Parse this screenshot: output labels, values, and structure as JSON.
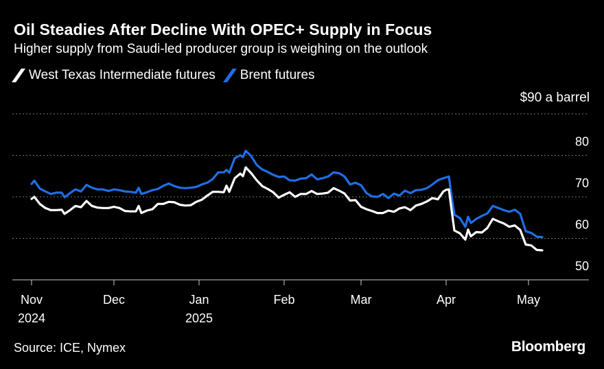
{
  "header": {
    "title": "Oil Steadies After Decline With OPEC+ Supply in Focus",
    "subtitle": "Higher supply from Saudi-led producer group is weighing on the outlook"
  },
  "footer": {
    "source": "Source: ICE, Nymex",
    "brand": "Bloomberg"
  },
  "colors": {
    "background": "#000000",
    "wti": "#ffffff",
    "brent": "#1f6fe6",
    "grid": "#777777"
  },
  "chart_data": {
    "type": "line",
    "title": "Oil Steadies After Decline With OPEC+ Supply in Focus",
    "subtitle": "Higher supply from Saudi-led producer group is weighing on the outlook",
    "unit_label": "$90 a barrel",
    "ylim": [
      50,
      90
    ],
    "yticks": [
      {
        "value": 90,
        "label": ""
      },
      {
        "value": 80,
        "label": "80"
      },
      {
        "value": 70,
        "label": "70"
      },
      {
        "value": 60,
        "label": "60"
      },
      {
        "value": 50,
        "label": "50"
      }
    ],
    "xlim": [
      "2024-10-31",
      "2025-05-22"
    ],
    "xticks": [
      {
        "date": "2024-11-01",
        "label": "Nov",
        "label2": "2024"
      },
      {
        "date": "2024-12-01",
        "label": "Dec",
        "label2": ""
      },
      {
        "date": "2025-01-01",
        "label": "Jan",
        "label2": "2025"
      },
      {
        "date": "2025-02-01",
        "label": "Feb",
        "label2": ""
      },
      {
        "date": "2025-03-01",
        "label": "Mar",
        "label2": ""
      },
      {
        "date": "2025-04-01",
        "label": "Apr",
        "label2": ""
      },
      {
        "date": "2025-05-01",
        "label": "May",
        "label2": ""
      }
    ],
    "legend_position": "top-left",
    "grid": true,
    "series": [
      {
        "name": "West Texas Intermediate futures",
        "color": "#ffffff",
        "points": [
          [
            "2024-11-01",
            69.5
          ],
          [
            "2024-11-02",
            70.0
          ],
          [
            "2024-11-04",
            68.3
          ],
          [
            "2024-11-06",
            67.3
          ],
          [
            "2024-11-08",
            66.8
          ],
          [
            "2024-11-10",
            66.8
          ],
          [
            "2024-11-12",
            66.9
          ],
          [
            "2024-11-13",
            65.9
          ],
          [
            "2024-11-15",
            66.8
          ],
          [
            "2024-11-17",
            67.8
          ],
          [
            "2024-11-19",
            67.5
          ],
          [
            "2024-11-21",
            69.0
          ],
          [
            "2024-11-23",
            67.8
          ],
          [
            "2024-11-25",
            67.4
          ],
          [
            "2024-11-27",
            67.3
          ],
          [
            "2024-11-29",
            67.3
          ],
          [
            "2024-12-01",
            67.6
          ],
          [
            "2024-12-03",
            67.3
          ],
          [
            "2024-12-05",
            66.6
          ],
          [
            "2024-12-07",
            66.5
          ],
          [
            "2024-12-09",
            66.5
          ],
          [
            "2024-12-10",
            67.8
          ],
          [
            "2024-12-11",
            66.1
          ],
          [
            "2024-12-13",
            66.7
          ],
          [
            "2024-12-15",
            67.0
          ],
          [
            "2024-12-17",
            68.3
          ],
          [
            "2024-12-19",
            68.3
          ],
          [
            "2024-12-21",
            68.8
          ],
          [
            "2024-12-23",
            68.7
          ],
          [
            "2024-12-25",
            68.1
          ],
          [
            "2024-12-27",
            67.9
          ],
          [
            "2024-12-29",
            68.0
          ],
          [
            "2024-12-31",
            68.8
          ],
          [
            "2025-01-02",
            69.3
          ],
          [
            "2025-01-04",
            70.3
          ],
          [
            "2025-01-06",
            71.2
          ],
          [
            "2025-01-08",
            71.2
          ],
          [
            "2025-01-10",
            71.1
          ],
          [
            "2025-01-11",
            72.7
          ],
          [
            "2025-01-12",
            71.2
          ],
          [
            "2025-01-14",
            74.5
          ],
          [
            "2025-01-16",
            75.6
          ],
          [
            "2025-01-17",
            75.0
          ],
          [
            "2025-01-18",
            77.1
          ],
          [
            "2025-01-20",
            75.7
          ],
          [
            "2025-01-22",
            74.0
          ],
          [
            "2025-01-24",
            72.6
          ],
          [
            "2025-01-26",
            71.9
          ],
          [
            "2025-01-28",
            71.1
          ],
          [
            "2025-01-30",
            69.8
          ],
          [
            "2025-02-01",
            70.5
          ],
          [
            "2025-02-03",
            71.1
          ],
          [
            "2025-02-05",
            70.0
          ],
          [
            "2025-02-07",
            70.7
          ],
          [
            "2025-02-09",
            70.7
          ],
          [
            "2025-02-11",
            71.4
          ],
          [
            "2025-02-13",
            70.7
          ],
          [
            "2025-02-15",
            70.8
          ],
          [
            "2025-02-17",
            71.0
          ],
          [
            "2025-02-19",
            72.1
          ],
          [
            "2025-02-21",
            71.5
          ],
          [
            "2025-02-23",
            70.8
          ],
          [
            "2025-02-25",
            69.1
          ],
          [
            "2025-02-27",
            69.2
          ],
          [
            "2025-03-01",
            67.6
          ],
          [
            "2025-03-03",
            67.0
          ],
          [
            "2025-03-05",
            66.6
          ],
          [
            "2025-03-07",
            66.1
          ],
          [
            "2025-03-09",
            66.1
          ],
          [
            "2025-03-11",
            66.7
          ],
          [
            "2025-03-13",
            66.4
          ],
          [
            "2025-03-15",
            67.2
          ],
          [
            "2025-03-17",
            67.5
          ],
          [
            "2025-03-19",
            66.8
          ],
          [
            "2025-03-21",
            67.9
          ],
          [
            "2025-03-23",
            68.3
          ],
          [
            "2025-03-25",
            68.9
          ],
          [
            "2025-03-27",
            69.7
          ],
          [
            "2025-03-29",
            69.4
          ],
          [
            "2025-03-31",
            71.3
          ],
          [
            "2025-04-01",
            71.7
          ],
          [
            "2025-04-02",
            71.8
          ],
          [
            "2025-04-03",
            66.8
          ],
          [
            "2025-04-04",
            61.9
          ],
          [
            "2025-04-06",
            61.2
          ],
          [
            "2025-04-08",
            59.7
          ],
          [
            "2025-04-09",
            62.1
          ],
          [
            "2025-04-10",
            60.5
          ],
          [
            "2025-04-12",
            61.5
          ],
          [
            "2025-04-14",
            61.4
          ],
          [
            "2025-04-16",
            62.5
          ],
          [
            "2025-04-18",
            64.7
          ],
          [
            "2025-04-20",
            64.1
          ],
          [
            "2025-04-22",
            63.6
          ],
          [
            "2025-04-24",
            62.8
          ],
          [
            "2025-04-26",
            63.1
          ],
          [
            "2025-04-28",
            62.0
          ],
          [
            "2025-04-30",
            58.5
          ],
          [
            "2025-05-02",
            58.3
          ],
          [
            "2025-05-04",
            57.2
          ],
          [
            "2025-05-06",
            57.1
          ]
        ]
      },
      {
        "name": "Brent futures",
        "color": "#1f6fe6",
        "points": [
          [
            "2024-11-01",
            73.1
          ],
          [
            "2024-11-02",
            73.9
          ],
          [
            "2024-11-04",
            72.0
          ],
          [
            "2024-11-06",
            71.3
          ],
          [
            "2024-11-08",
            70.7
          ],
          [
            "2024-11-10",
            71.0
          ],
          [
            "2024-11-12",
            71.0
          ],
          [
            "2024-11-13",
            69.9
          ],
          [
            "2024-11-15",
            70.9
          ],
          [
            "2024-11-17",
            71.8
          ],
          [
            "2024-11-19",
            71.3
          ],
          [
            "2024-11-21",
            72.9
          ],
          [
            "2024-11-23",
            72.2
          ],
          [
            "2024-11-25",
            71.8
          ],
          [
            "2024-11-27",
            71.8
          ],
          [
            "2024-11-29",
            71.4
          ],
          [
            "2024-12-01",
            71.8
          ],
          [
            "2024-12-03",
            71.6
          ],
          [
            "2024-12-05",
            71.3
          ],
          [
            "2024-12-07",
            71.2
          ],
          [
            "2024-12-09",
            71.0
          ],
          [
            "2024-12-10",
            72.2
          ],
          [
            "2024-12-11",
            70.7
          ],
          [
            "2024-12-13",
            71.1
          ],
          [
            "2024-12-15",
            71.6
          ],
          [
            "2024-12-17",
            71.9
          ],
          [
            "2024-12-19",
            72.7
          ],
          [
            "2024-12-21",
            73.2
          ],
          [
            "2024-12-23",
            72.6
          ],
          [
            "2024-12-25",
            72.2
          ],
          [
            "2024-12-27",
            72.1
          ],
          [
            "2024-12-29",
            72.2
          ],
          [
            "2024-12-31",
            72.4
          ],
          [
            "2025-01-02",
            73.0
          ],
          [
            "2025-01-04",
            73.4
          ],
          [
            "2025-01-06",
            74.3
          ],
          [
            "2025-01-08",
            75.9
          ],
          [
            "2025-01-10",
            75.9
          ],
          [
            "2025-01-11",
            76.5
          ],
          [
            "2025-01-12",
            75.8
          ],
          [
            "2025-01-14",
            79.3
          ],
          [
            "2025-01-16",
            80.0
          ],
          [
            "2025-01-17",
            79.6
          ],
          [
            "2025-01-18",
            81.1
          ],
          [
            "2025-01-20",
            79.8
          ],
          [
            "2025-01-22",
            77.7
          ],
          [
            "2025-01-24",
            76.6
          ],
          [
            "2025-01-26",
            76.0
          ],
          [
            "2025-01-28",
            75.3
          ],
          [
            "2025-01-30",
            74.8
          ],
          [
            "2025-02-01",
            74.9
          ],
          [
            "2025-02-03",
            74.0
          ],
          [
            "2025-02-05",
            73.9
          ],
          [
            "2025-02-07",
            74.4
          ],
          [
            "2025-02-09",
            74.5
          ],
          [
            "2025-02-11",
            75.4
          ],
          [
            "2025-02-13",
            74.2
          ],
          [
            "2025-02-15",
            74.5
          ],
          [
            "2025-02-17",
            74.9
          ],
          [
            "2025-02-19",
            75.9
          ],
          [
            "2025-02-21",
            75.7
          ],
          [
            "2025-02-23",
            74.9
          ],
          [
            "2025-02-25",
            73.0
          ],
          [
            "2025-02-27",
            73.4
          ],
          [
            "2025-03-01",
            72.8
          ],
          [
            "2025-03-03",
            70.9
          ],
          [
            "2025-03-05",
            70.1
          ],
          [
            "2025-03-07",
            70.0
          ],
          [
            "2025-03-09",
            70.7
          ],
          [
            "2025-03-11",
            69.7
          ],
          [
            "2025-03-13",
            70.8
          ],
          [
            "2025-03-15",
            70.3
          ],
          [
            "2025-03-17",
            71.5
          ],
          [
            "2025-03-19",
            70.9
          ],
          [
            "2025-03-21",
            71.6
          ],
          [
            "2025-03-23",
            71.7
          ],
          [
            "2025-03-25",
            72.1
          ],
          [
            "2025-03-27",
            73.0
          ],
          [
            "2025-03-29",
            74.0
          ],
          [
            "2025-03-31",
            74.5
          ],
          [
            "2025-04-01",
            74.7
          ],
          [
            "2025-04-02",
            74.9
          ],
          [
            "2025-04-03",
            70.1
          ],
          [
            "2025-04-04",
            65.7
          ],
          [
            "2025-04-06",
            64.9
          ],
          [
            "2025-04-08",
            62.8
          ],
          [
            "2025-04-09",
            65.2
          ],
          [
            "2025-04-10",
            63.7
          ],
          [
            "2025-04-12",
            64.7
          ],
          [
            "2025-04-14",
            65.4
          ],
          [
            "2025-04-16",
            66.0
          ],
          [
            "2025-04-18",
            67.8
          ],
          [
            "2025-04-20",
            67.3
          ],
          [
            "2025-04-22",
            66.8
          ],
          [
            "2025-04-24",
            66.4
          ],
          [
            "2025-04-26",
            66.9
          ],
          [
            "2025-04-28",
            65.9
          ],
          [
            "2025-04-30",
            61.7
          ],
          [
            "2025-05-02",
            61.3
          ],
          [
            "2025-05-04",
            60.4
          ],
          [
            "2025-05-06",
            60.3
          ]
        ]
      }
    ]
  }
}
